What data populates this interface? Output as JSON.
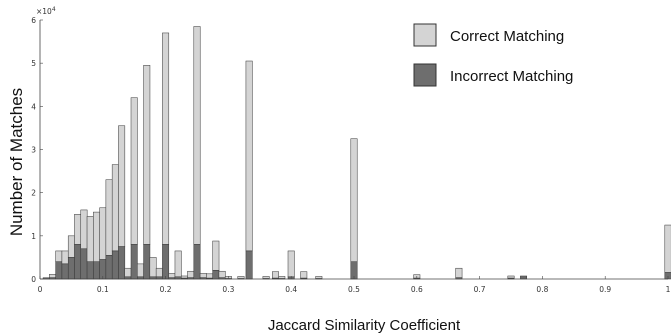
{
  "chart_data": {
    "type": "bar",
    "stacked": true,
    "xlabel": "Jaccard Similarity Coefficient",
    "ylabel": "Number of Matches",
    "xlim": [
      0,
      1
    ],
    "ylim": [
      0,
      60000
    ],
    "y_exponent_label": "×10",
    "y_exponent_power": "4",
    "xticks": [
      "0",
      "0.1",
      "0.2",
      "0.3",
      "0.4",
      "0.5",
      "0.6",
      "0.7",
      "0.8",
      "0.9",
      "1"
    ],
    "yticks": [
      "0",
      "1",
      "2",
      "3",
      "4",
      "5",
      "6"
    ],
    "legend_position": "top-right",
    "x": [
      0.01,
      0.02,
      0.03,
      0.04,
      0.05,
      0.06,
      0.07,
      0.08,
      0.09,
      0.1,
      0.11,
      0.12,
      0.13,
      0.14,
      0.15,
      0.16,
      0.17,
      0.18,
      0.19,
      0.2,
      0.21,
      0.22,
      0.23,
      0.24,
      0.25,
      0.26,
      0.27,
      0.28,
      0.29,
      0.3,
      0.32,
      0.333,
      0.36,
      0.375,
      0.385,
      0.4,
      0.42,
      0.444,
      0.5,
      0.6,
      0.667,
      0.75,
      0.77,
      1.0
    ],
    "series": [
      {
        "name": "Correct Matching",
        "color": "#d4d4d4",
        "values": [
          200,
          800,
          2500,
          3000,
          5000,
          7000,
          9000,
          10500,
          11500,
          12000,
          17500,
          20000,
          28000,
          2000,
          34000,
          3000,
          41500,
          4500,
          2000,
          49000,
          1000,
          6000,
          500,
          1500,
          50500,
          1000,
          1000,
          6800,
          1500,
          500,
          500,
          44000,
          500,
          1500,
          500,
          6000,
          1500,
          500,
          28500,
          800,
          2200,
          500,
          200,
          11000
        ]
      },
      {
        "name": "Incorrect Matching",
        "color": "#6e6e6e",
        "values": [
          100,
          300,
          4000,
          3500,
          5000,
          8000,
          7000,
          4000,
          4000,
          4500,
          5500,
          6500,
          7500,
          500,
          8000,
          500,
          8000,
          500,
          500,
          8000,
          300,
          500,
          200,
          300,
          8000,
          300,
          200,
          2000,
          300,
          100,
          100,
          6500,
          100,
          200,
          100,
          500,
          200,
          100,
          4000,
          200,
          300,
          200,
          500,
          1500
        ]
      }
    ]
  }
}
